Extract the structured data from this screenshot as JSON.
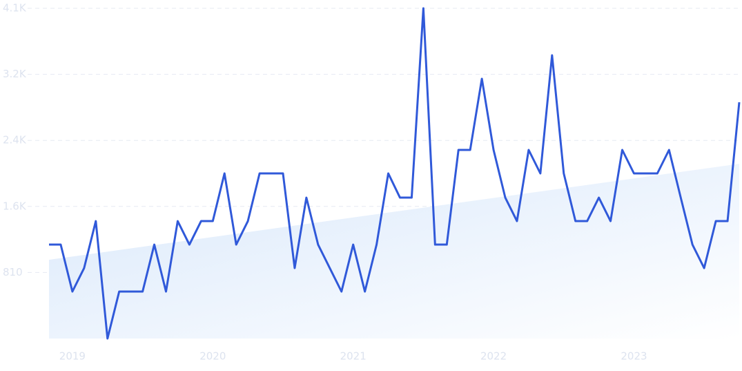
{
  "chart_data": {
    "type": "line",
    "categories": [
      null,
      null,
      "2019",
      null,
      null,
      null,
      null,
      null,
      null,
      null,
      null,
      null,
      null,
      null,
      "2020",
      null,
      null,
      null,
      null,
      null,
      null,
      null,
      null,
      null,
      null,
      null,
      "2021",
      null,
      null,
      null,
      null,
      null,
      null,
      null,
      null,
      null,
      null,
      null,
      "2022",
      null,
      null,
      null,
      null,
      null,
      null,
      null,
      null,
      null,
      null,
      null,
      "2023",
      null,
      null,
      null,
      null,
      null,
      null,
      null,
      null,
      null
    ],
    "series": [
      {
        "color": "#3059d9",
        "values": [
          1152,
          1152,
          576,
          864,
          1440,
          0,
          576,
          576,
          576,
          1152,
          576,
          1440,
          1152,
          1440,
          1440,
          2025,
          1152,
          1440,
          2025,
          2025,
          2025,
          864,
          1728,
          1152,
          864,
          576,
          1152,
          576,
          1152,
          2025,
          1728,
          1728,
          4050,
          1152,
          1152,
          2313,
          2313,
          3186,
          2313,
          1728,
          1440,
          2313,
          2025,
          3474,
          2025,
          1440,
          1440,
          1728,
          1440,
          2313,
          2025,
          2025,
          2025,
          2313,
          1728,
          1152,
          864,
          1440,
          1440,
          2898
        ]
      }
    ],
    "trend_values": [
      966,
      2143
    ],
    "ylim": [
      0,
      4050
    ],
    "yticks": [
      810,
      {
        "value": 1620,
        "label": "1.6K"
      },
      {
        "value": 2430,
        "label": "2.4K"
      },
      {
        "value": 3240,
        "label": "3.2K"
      },
      {
        "value": 4050,
        "label": "4.1K"
      }
    ],
    "grid": true
  }
}
